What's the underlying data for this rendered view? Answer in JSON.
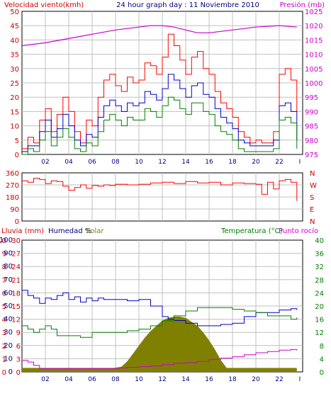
{
  "chart_data": [
    {
      "type": "line",
      "title": "24 hour graph day : 11 Noviembre 2010",
      "ylabel_left": "Velocidad viento(kmh)",
      "ylabel_right": "Presión (mb)",
      "x_ticks": [
        "02",
        "04",
        "06",
        "08",
        "10",
        "12",
        "14",
        "16",
        "18",
        "20",
        "22",
        "I"
      ],
      "left_ticks": [
        "0",
        "5",
        "10",
        "15",
        "20",
        "25",
        "30",
        "35",
        "40",
        "45",
        "50"
      ],
      "right_ticks": [
        "975",
        "980",
        "985",
        "990",
        "995",
        "1000",
        "1005",
        "1010",
        "1015",
        "1020",
        "1025"
      ],
      "ylim_left": [
        0,
        50
      ],
      "ylim_right": [
        975,
        1025
      ],
      "grid": true,
      "series": [
        {
          "color": "#ff0000",
          "axis": "left",
          "x": [
            0,
            0.5,
            1,
            1.5,
            2,
            2.5,
            3,
            3.5,
            4,
            4.5,
            5,
            5.5,
            6,
            6.5,
            7,
            7.5,
            8,
            8.5,
            9,
            9.5,
            10,
            10.5,
            11,
            11.5,
            12,
            12.5,
            13,
            13.5,
            14,
            14.5,
            15,
            15.5,
            16,
            16.5,
            17,
            17.5,
            18,
            18.5,
            19,
            19.5,
            20,
            20.5,
            21,
            21.5,
            22,
            22.5,
            23,
            23.5
          ],
          "values": [
            2,
            6,
            4,
            12,
            16,
            8,
            14,
            20,
            15,
            8,
            4,
            12,
            10,
            20,
            26,
            28,
            24,
            22,
            27,
            25,
            26,
            32,
            31,
            28,
            34,
            42,
            38,
            33,
            28,
            34,
            36,
            30,
            28,
            22,
            18,
            16,
            13,
            8,
            6,
            4,
            5,
            4,
            4,
            8,
            28,
            30,
            26,
            15
          ]
        },
        {
          "color": "#0000cc",
          "axis": "left",
          "x": [
            0,
            0.5,
            1,
            1.5,
            2,
            2.5,
            3,
            3.5,
            4,
            4.5,
            5,
            5.5,
            6,
            6.5,
            7,
            7.5,
            8,
            8.5,
            9,
            9.5,
            10,
            10.5,
            11,
            11.5,
            12,
            12.5,
            13,
            13.5,
            14,
            14.5,
            15,
            15.5,
            16,
            16.5,
            17,
            17.5,
            18,
            18.5,
            19,
            19.5,
            20,
            20.5,
            21,
            21.5,
            22,
            22.5,
            23,
            23.5
          ],
          "values": [
            1,
            3,
            3,
            8,
            12,
            6,
            9,
            14,
            10,
            5,
            3,
            7,
            6,
            13,
            17,
            19,
            17,
            15,
            18,
            17,
            18,
            22,
            21,
            19,
            23,
            28,
            26,
            23,
            20,
            24,
            25,
            21,
            20,
            16,
            13,
            11,
            9,
            5,
            4,
            3,
            3,
            3,
            3,
            5,
            17,
            18,
            15,
            5
          ]
        },
        {
          "color": "#008000",
          "axis": "left",
          "x": [
            0,
            0.5,
            1,
            1.5,
            2,
            2.5,
            3,
            3.5,
            4,
            4.5,
            5,
            5.5,
            6,
            6.5,
            7,
            7.5,
            8,
            8.5,
            9,
            9.5,
            10,
            10.5,
            11,
            11.5,
            12,
            12.5,
            13,
            13.5,
            14,
            14.5,
            15,
            15.5,
            16,
            16.5,
            17,
            17.5,
            18,
            18.5,
            19,
            19.5,
            20,
            20.5,
            21,
            21.5,
            22,
            22.5,
            23,
            23.5
          ],
          "values": [
            0,
            2,
            1,
            5,
            8,
            3,
            6,
            9,
            6,
            2,
            1,
            4,
            3,
            8,
            12,
            14,
            12,
            10,
            13,
            12,
            12,
            16,
            15,
            13,
            17,
            20,
            19,
            16,
            14,
            18,
            18,
            15,
            14,
            10,
            8,
            7,
            5,
            2,
            1,
            1,
            1,
            1,
            1,
            2,
            12,
            13,
            11,
            2
          ]
        },
        {
          "color": "#cc00cc",
          "axis": "right",
          "x": [
            0,
            2,
            4,
            6,
            8,
            10,
            11,
            12,
            13,
            14,
            15,
            16,
            18,
            20,
            22,
            23.5
          ],
          "values": [
            1013,
            1014,
            1015.5,
            1017,
            1018.5,
            1019.5,
            1020,
            1020,
            1019.5,
            1018.5,
            1017.5,
            1017.5,
            1018.5,
            1019.5,
            1020,
            1019.5
          ]
        }
      ]
    },
    {
      "type": "line",
      "left_ticks": [
        "360",
        "270",
        "180",
        "90",
        "0"
      ],
      "right_ticks": [
        "N",
        "W",
        "S",
        "E",
        "N"
      ],
      "ylim": [
        0,
        360
      ],
      "grid": true,
      "series": [
        {
          "color": "#ff0000",
          "x": [
            0,
            0.5,
            1,
            1.5,
            2,
            2.5,
            3,
            3.5,
            4,
            4.5,
            5,
            5.5,
            6,
            6.5,
            7,
            7.5,
            8,
            9,
            10,
            11,
            12,
            13,
            14,
            15,
            16,
            17,
            18,
            19,
            20,
            20.5,
            21,
            21.5,
            22,
            22.5,
            23,
            23.5
          ],
          "values": [
            300,
            290,
            320,
            310,
            280,
            300,
            295,
            260,
            230,
            250,
            270,
            245,
            265,
            260,
            270,
            265,
            275,
            270,
            275,
            285,
            290,
            280,
            295,
            285,
            290,
            270,
            285,
            280,
            275,
            200,
            290,
            240,
            300,
            310,
            290,
            150
          ]
        }
      ]
    },
    {
      "type": "line",
      "ylabel_left_rain": "Lluvia (mm)",
      "ylabel_left_hum": "Humedad %",
      "ylabel_left_solar": "Solar",
      "ylabel_right_temp": "Temperatura (°C)",
      "ylabel_right_dew": "Punto rocío",
      "left_ticks_outer": [
        "0",
        "1",
        "2",
        "3",
        "4",
        "5",
        "6",
        "7",
        "8",
        "9",
        "10"
      ],
      "left_ticks_inner": [
        "0",
        "3",
        "6",
        "9",
        "12",
        "15",
        "18",
        "21",
        "24",
        "27",
        "30"
      ],
      "mid_ticks": [
        "0",
        "10",
        "20",
        "30",
        "40",
        "50",
        "60",
        "70",
        "80",
        "90",
        "100"
      ],
      "right_ticks": [
        "0",
        "4",
        "8",
        "12",
        "16",
        "20",
        "24",
        "28",
        "32",
        "36",
        "40"
      ],
      "ylim_humidity": [
        0,
        100
      ],
      "ylim_temperature": [
        0,
        40
      ],
      "grid": true,
      "series": [
        {
          "color": "#808000",
          "type": "area",
          "x": [
            0,
            8,
            8.5,
            9,
            9.5,
            10,
            10.5,
            11,
            11.5,
            12,
            12.5,
            13,
            13.5,
            14,
            14.5,
            15,
            15.5,
            16,
            16.5,
            17,
            17.5,
            23.5
          ],
          "values": [
            3,
            3,
            4,
            8,
            14,
            20,
            26,
            31,
            35,
            39,
            41,
            42,
            42,
            41,
            38,
            35,
            30,
            24,
            17,
            9,
            3,
            3
          ]
        },
        {
          "color": "#0000cc",
          "x": [
            0,
            0.5,
            1,
            1.5,
            2,
            2.5,
            3,
            3.5,
            4,
            4.5,
            5,
            5.5,
            6,
            6.5,
            7,
            8,
            9,
            10,
            11,
            12,
            12.5,
            13,
            14,
            15,
            16,
            17,
            18,
            19,
            20,
            21,
            22,
            23,
            23.5
          ],
          "values": [
            62,
            58,
            56,
            52,
            56,
            55,
            58,
            60,
            55,
            57,
            53,
            56,
            54,
            56,
            55,
            55,
            54,
            55,
            50,
            42,
            40,
            39,
            37,
            35,
            35,
            36,
            37,
            42,
            45,
            45,
            47,
            48,
            47
          ]
        },
        {
          "color": "#008000",
          "x": [
            0,
            0.5,
            1,
            1.5,
            2,
            2.5,
            3,
            3.5,
            4,
            5,
            6,
            7,
            8,
            9,
            10,
            11,
            12,
            13,
            14,
            15,
            16,
            17,
            18,
            19,
            20,
            21,
            22,
            23,
            23.5
          ],
          "values": [
            14,
            13,
            12,
            13,
            14,
            13,
            11,
            11,
            11,
            10.5,
            12,
            12,
            12,
            12.5,
            13,
            14,
            15.5,
            17,
            18.5,
            19.5,
            19.5,
            19.5,
            19,
            18.5,
            18,
            17,
            17,
            16,
            16.5
          ]
        },
        {
          "color": "#cc00cc",
          "x": [
            0,
            0.5,
            1,
            1.5,
            2,
            3,
            4,
            5,
            6,
            7,
            8,
            9,
            10,
            11,
            12,
            13,
            14,
            15,
            16,
            17,
            18,
            19,
            20,
            21,
            22,
            23,
            23.5
          ],
          "values": [
            3.5,
            3,
            2,
            1,
            1,
            1,
            1,
            1,
            1,
            1,
            1.2,
            1.4,
            1.6,
            1.8,
            2.2,
            2.6,
            2.8,
            3.2,
            3.8,
            4.2,
            4.6,
            5.2,
            5.8,
            6.2,
            6.6,
            6.8,
            6.5
          ]
        }
      ]
    }
  ]
}
